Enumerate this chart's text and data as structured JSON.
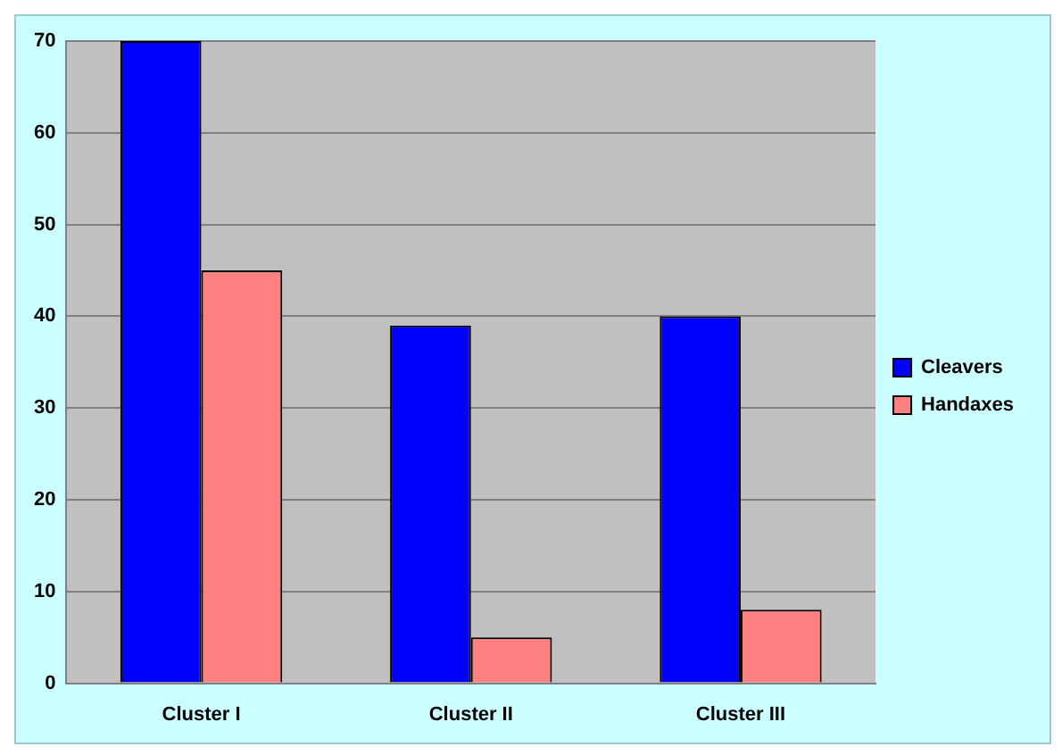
{
  "chart_data": {
    "type": "bar",
    "categories": [
      "Cluster I",
      "Cluster II",
      "Cluster III"
    ],
    "series": [
      {
        "name": "Cleavers",
        "color": "#0000ff",
        "values": [
          70,
          39,
          40
        ]
      },
      {
        "name": "Handaxes",
        "color": "#ff8080",
        "values": [
          45,
          5,
          8
        ]
      }
    ],
    "ylim": [
      0,
      70
    ],
    "yticks": [
      0,
      10,
      20,
      30,
      40,
      50,
      60,
      70
    ],
    "grid": "y",
    "legend": "right"
  }
}
